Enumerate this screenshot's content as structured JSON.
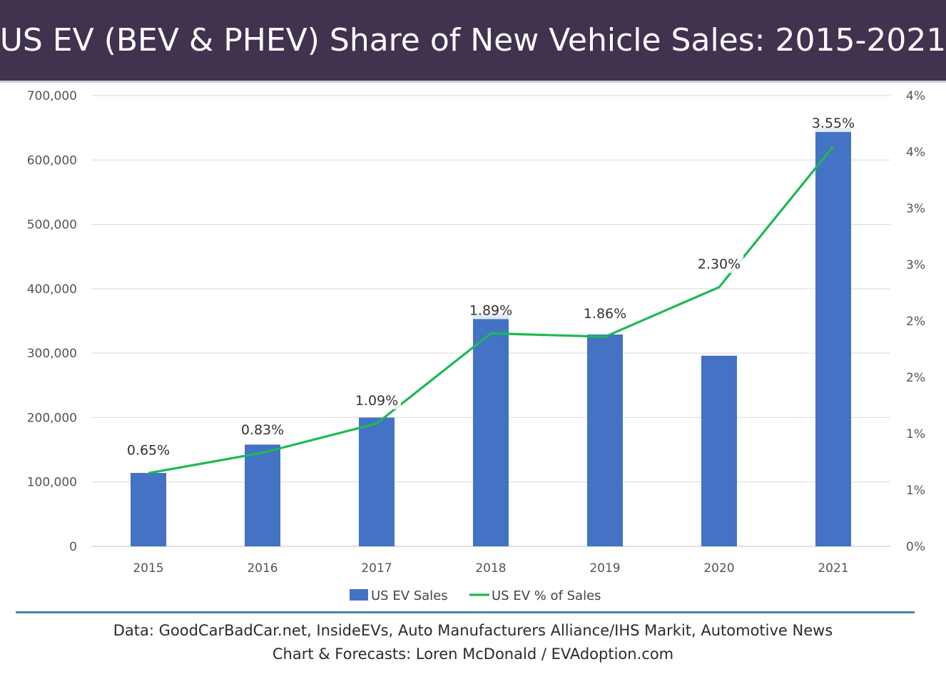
{
  "title": "US EV (BEV & PHEV) Share of New Vehicle Sales: 2015-2021",
  "footer": {
    "line1": "Data: GoodCarBadCar.net, InsideEVs, Auto Manufacturers Alliance/IHS Markit, Automotive News",
    "line2": "Chart & Forecasts: Loren McDonald / EVAdoption.com"
  },
  "colors": {
    "title_bg": "#41324f",
    "bar": "#4472c4",
    "line": "#1db954",
    "grid": "#d9d9d9",
    "footer_rule": "#4e7fb8"
  },
  "chart_data": {
    "type": "bar+line",
    "title": "US EV (BEV & PHEV) Share of New Vehicle Sales: 2015-2021",
    "categories": [
      "2015",
      "2016",
      "2017",
      "2018",
      "2019",
      "2020",
      "2021"
    ],
    "series": [
      {
        "name": "US EV Sales",
        "type": "bar",
        "axis": "left",
        "values": [
          114000,
          158000,
          200000,
          361000,
          329000,
          296000,
          650000
        ]
      },
      {
        "name": "US EV % of Sales",
        "type": "line",
        "axis": "right",
        "values": [
          0.65,
          0.83,
          1.09,
          1.89,
          1.86,
          2.3,
          3.55
        ],
        "labels": [
          "0.65%",
          "0.83%",
          "1.09%",
          "1.89%",
          "1.86%",
          "2.30%",
          "3.55%"
        ]
      }
    ],
    "left_axis": {
      "min": 0,
      "max": 700000,
      "ticks": [
        0,
        100000,
        200000,
        300000,
        400000,
        500000,
        600000,
        700000
      ],
      "tick_labels": [
        "0",
        "100,000",
        "200,000",
        "300,000",
        "400,000",
        "500,000",
        "600,000",
        "700,000"
      ]
    },
    "right_axis": {
      "min": 0,
      "max": 4,
      "ticks": [
        0,
        0.5,
        1,
        1.5,
        2,
        2.5,
        3,
        3.5,
        4
      ],
      "tick_labels": [
        "0%",
        "1%",
        "1%",
        "2%",
        "2%",
        "3%",
        "3%",
        "4%",
        "4%"
      ]
    },
    "legend": {
      "position": "bottom",
      "entries": [
        "US EV Sales",
        "US EV % of Sales"
      ]
    },
    "grid": true
  }
}
